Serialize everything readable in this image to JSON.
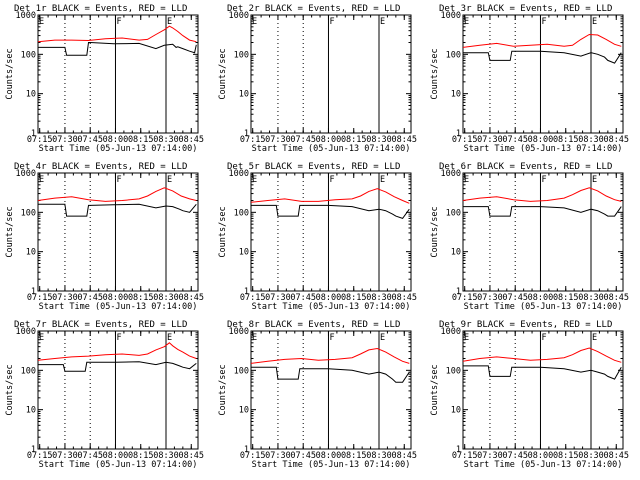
{
  "figure": {
    "date": "05-Jun-13"
  },
  "chart_data": [
    {
      "type": "line",
      "det": "1r",
      "title": "Det 1r BLACK = Events, RED = LLD",
      "xlabel": "Start Time (05-Jun-13 07:14:00)",
      "ylabel": "Counts/sec",
      "ylim": [
        1,
        1000
      ],
      "yscale": "log",
      "x_tick_labels": [
        "07:15",
        "07:30",
        "07:45",
        "08:00",
        "08:15",
        "08:30",
        "08:45"
      ],
      "y_tick_labels": [
        "1",
        "10",
        "100",
        "1000"
      ],
      "markers": [
        {
          "label": "E",
          "time": "07:14"
        },
        {
          "label": "F",
          "time": "08:00"
        },
        {
          "label": "E",
          "time": "08:30"
        }
      ],
      "dotted_lines": [
        "07:30",
        "07:45",
        "08:30"
      ],
      "series": [
        {
          "name": "Events",
          "color": "#000000",
          "times_min": [
            0,
            16,
            17,
            29,
            30,
            31,
            45,
            46,
            60,
            70,
            75,
            80,
            82,
            83,
            86,
            90,
            93,
            94
          ],
          "values": [
            150,
            150,
            95,
            95,
            200,
            200,
            185,
            185,
            190,
            140,
            170,
            180,
            150,
            155,
            140,
            120,
            110,
            175
          ]
        },
        {
          "name": "LLD",
          "color": "#ff0000",
          "times_min": [
            0,
            10,
            20,
            30,
            40,
            50,
            60,
            65,
            70,
            75,
            78,
            80,
            83,
            86,
            90,
            94
          ],
          "values": [
            210,
            230,
            230,
            225,
            250,
            260,
            230,
            240,
            320,
            420,
            520,
            470,
            380,
            300,
            230,
            210
          ]
        }
      ]
    },
    {
      "type": "line",
      "det": "2r",
      "title": "Det 2r BLACK = Events, RED = LLD",
      "xlabel": "Start Time (05-Jun-13 07:14:00)",
      "ylabel": "Counts/sec",
      "ylim": [
        1,
        1000
      ],
      "yscale": "log",
      "x_tick_labels": [
        "07:15",
        "07:30",
        "07:45",
        "08:00",
        "08:15",
        "08:30",
        "08:45"
      ],
      "y_tick_labels": [
        "1",
        "10",
        "100",
        "1000"
      ],
      "markers": [
        {
          "label": "E",
          "time": "07:14"
        },
        {
          "label": "F",
          "time": "08:00"
        },
        {
          "label": "E",
          "time": "08:30"
        }
      ],
      "dotted_lines": [
        "07:30",
        "07:45",
        "08:30"
      ],
      "series": []
    },
    {
      "type": "line",
      "det": "3r",
      "title": "Det 3r BLACK = Events, RED = LLD",
      "xlabel": "Start Time (05-Jun-13 07:14:00)",
      "ylabel": "Counts/sec",
      "ylim": [
        1,
        1000
      ],
      "yscale": "log",
      "x_tick_labels": [
        "07:15",
        "07:30",
        "07:45",
        "08:00",
        "08:15",
        "08:30",
        "08:45"
      ],
      "y_tick_labels": [
        "1",
        "10",
        "100",
        "1000"
      ],
      "markers": [
        {
          "label": "E",
          "time": "07:14"
        },
        {
          "label": "F",
          "time": "08:00"
        },
        {
          "label": "E",
          "time": "08:30"
        }
      ],
      "dotted_lines": [
        "07:30",
        "07:45",
        "08:30"
      ],
      "series": [
        {
          "name": "Events",
          "color": "#000000",
          "times_min": [
            0,
            15,
            16,
            28,
            29,
            30,
            45,
            46,
            60,
            70,
            76,
            80,
            84,
            86,
            90,
            94
          ],
          "values": [
            110,
            110,
            70,
            70,
            120,
            120,
            120,
            120,
            110,
            90,
            110,
            100,
            85,
            70,
            60,
            110
          ]
        },
        {
          "name": "LLD",
          "color": "#ff0000",
          "times_min": [
            0,
            10,
            20,
            30,
            40,
            50,
            60,
            65,
            70,
            75,
            80,
            85,
            90,
            94
          ],
          "values": [
            150,
            170,
            190,
            160,
            170,
            180,
            160,
            170,
            240,
            320,
            310,
            240,
            180,
            160
          ]
        }
      ]
    },
    {
      "type": "line",
      "det": "4r",
      "title": "Det 4r BLACK = Events, RED = LLD",
      "xlabel": "Start Time (05-Jun-13 07:14:00)",
      "ylabel": "Counts/sec",
      "ylim": [
        1,
        1000
      ],
      "yscale": "log",
      "x_tick_labels": [
        "07:15",
        "07:30",
        "07:45",
        "08:00",
        "08:15",
        "08:30",
        "08:45"
      ],
      "y_tick_labels": [
        "1",
        "10",
        "100",
        "1000"
      ],
      "markers": [
        {
          "label": "E",
          "time": "07:14"
        },
        {
          "label": "F",
          "time": "08:00"
        },
        {
          "label": "E",
          "time": "08:30"
        }
      ],
      "dotted_lines": [
        "07:30",
        "07:45",
        "08:30"
      ],
      "series": [
        {
          "name": "Events",
          "color": "#000000",
          "times_min": [
            0,
            16,
            17,
            29,
            30,
            31,
            45,
            46,
            60,
            70,
            76,
            80,
            84,
            86,
            90,
            94
          ],
          "values": [
            160,
            160,
            80,
            80,
            150,
            150,
            155,
            155,
            160,
            130,
            145,
            140,
            120,
            110,
            100,
            160
          ]
        },
        {
          "name": "LLD",
          "color": "#ff0000",
          "times_min": [
            0,
            10,
            20,
            30,
            40,
            50,
            60,
            65,
            70,
            75,
            80,
            85,
            90,
            94
          ],
          "values": [
            200,
            230,
            250,
            210,
            190,
            200,
            220,
            260,
            340,
            420,
            350,
            260,
            220,
            200
          ]
        }
      ]
    },
    {
      "type": "line",
      "det": "5r",
      "title": "Det 5r BLACK = Events, RED = LLD",
      "xlabel": "Start Time (05-Jun-13 07:14:00)",
      "ylabel": "Counts/sec",
      "ylim": [
        1,
        1000
      ],
      "yscale": "log",
      "x_tick_labels": [
        "07:15",
        "07:30",
        "07:45",
        "08:00",
        "08:15",
        "08:30",
        "08:45"
      ],
      "y_tick_labels": [
        "1",
        "10",
        "100",
        "1000"
      ],
      "markers": [
        {
          "label": "E",
          "time": "07:14"
        },
        {
          "label": "F",
          "time": "08:00"
        },
        {
          "label": "E",
          "time": "08:30"
        }
      ],
      "dotted_lines": [
        "07:30",
        "07:45",
        "08:30"
      ],
      "series": [
        {
          "name": "Events",
          "color": "#000000",
          "times_min": [
            0,
            15,
            16,
            28,
            29,
            30,
            45,
            46,
            60,
            70,
            76,
            80,
            84,
            86,
            90,
            94
          ],
          "values": [
            150,
            150,
            80,
            80,
            150,
            150,
            150,
            150,
            140,
            110,
            120,
            110,
            90,
            80,
            70,
            120
          ]
        },
        {
          "name": "LLD",
          "color": "#ff0000",
          "times_min": [
            0,
            10,
            20,
            30,
            40,
            50,
            60,
            65,
            70,
            75,
            80,
            85,
            90,
            94
          ],
          "values": [
            180,
            200,
            220,
            190,
            190,
            210,
            220,
            260,
            340,
            400,
            330,
            250,
            200,
            170
          ]
        }
      ]
    },
    {
      "type": "line",
      "det": "6r",
      "title": "Det 6r BLACK = Events, RED = LLD",
      "xlabel": "Start Time (05-Jun-13 07:14:00)",
      "ylabel": "Counts/sec",
      "ylim": [
        1,
        1000
      ],
      "yscale": "log",
      "x_tick_labels": [
        "07:15",
        "07:30",
        "07:45",
        "08:00",
        "08:15",
        "08:30",
        "08:45"
      ],
      "y_tick_labels": [
        "1",
        "10",
        "100",
        "1000"
      ],
      "markers": [
        {
          "label": "E",
          "time": "07:14"
        },
        {
          "label": "F",
          "time": "08:00"
        },
        {
          "label": "E",
          "time": "08:30"
        }
      ],
      "dotted_lines": [
        "07:30",
        "07:45",
        "08:30"
      ],
      "series": [
        {
          "name": "Events",
          "color": "#000000",
          "times_min": [
            0,
            15,
            16,
            28,
            29,
            30,
            45,
            46,
            60,
            70,
            76,
            80,
            84,
            86,
            90,
            94
          ],
          "values": [
            140,
            140,
            80,
            80,
            140,
            140,
            140,
            140,
            130,
            100,
            120,
            110,
            90,
            80,
            80,
            140
          ]
        },
        {
          "name": "LLD",
          "color": "#ff0000",
          "times_min": [
            0,
            10,
            20,
            30,
            40,
            50,
            60,
            65,
            70,
            75,
            80,
            85,
            90,
            94
          ],
          "values": [
            200,
            230,
            250,
            210,
            190,
            200,
            230,
            280,
            360,
            420,
            350,
            260,
            210,
            190
          ]
        }
      ]
    },
    {
      "type": "line",
      "det": "7r",
      "title": "Det 7r BLACK = Events, RED = LLD",
      "xlabel": "Start Time (05-Jun-13 07:14:00)",
      "ylabel": "Counts/sec",
      "ylim": [
        1,
        1000
      ],
      "yscale": "log",
      "x_tick_labels": [
        "07:15",
        "07:30",
        "07:45",
        "08:00",
        "08:15",
        "08:30",
        "08:45"
      ],
      "y_tick_labels": [
        "1",
        "10",
        "100",
        "1000"
      ],
      "markers": [
        {
          "label": "E",
          "time": "07:14"
        },
        {
          "label": "F",
          "time": "08:00"
        },
        {
          "label": "E",
          "time": "08:30"
        }
      ],
      "dotted_lines": [
        "07:30",
        "07:45",
        "08:30"
      ],
      "series": [
        {
          "name": "Events",
          "color": "#000000",
          "times_min": [
            0,
            15,
            16,
            28,
            29,
            30,
            45,
            46,
            60,
            70,
            76,
            80,
            84,
            86,
            90,
            94
          ],
          "values": [
            140,
            140,
            95,
            95,
            160,
            160,
            160,
            160,
            165,
            140,
            160,
            150,
            130,
            120,
            110,
            150
          ]
        },
        {
          "name": "LLD",
          "color": "#ff0000",
          "times_min": [
            0,
            10,
            20,
            30,
            40,
            50,
            60,
            65,
            70,
            75,
            78,
            80,
            83,
            86,
            90,
            94
          ],
          "values": [
            180,
            200,
            220,
            230,
            250,
            260,
            240,
            260,
            330,
            400,
            500,
            420,
            340,
            290,
            230,
            200
          ]
        }
      ]
    },
    {
      "type": "line",
      "det": "8r",
      "title": "Det 8r BLACK = Events, RED = LLD",
      "xlabel": "Start Time (05-Jun-13 07:14:00)",
      "ylabel": "Counts/sec",
      "ylim": [
        1,
        1000
      ],
      "yscale": "log",
      "x_tick_labels": [
        "07:15",
        "07:30",
        "07:45",
        "08:00",
        "08:15",
        "08:30",
        "08:45"
      ],
      "y_tick_labels": [
        "1",
        "10",
        "100",
        "1000"
      ],
      "markers": [
        {
          "label": "E",
          "time": "07:14"
        },
        {
          "label": "F",
          "time": "08:00"
        },
        {
          "label": "E",
          "time": "08:30"
        }
      ],
      "dotted_lines": [
        "07:30",
        "07:45",
        "08:30"
      ],
      "series": [
        {
          "name": "Events",
          "color": "#000000",
          "times_min": [
            0,
            15,
            16,
            28,
            29,
            30,
            45,
            46,
            60,
            70,
            76,
            80,
            84,
            86,
            90,
            94
          ],
          "values": [
            120,
            120,
            60,
            60,
            110,
            110,
            110,
            110,
            100,
            80,
            90,
            80,
            60,
            50,
            50,
            90
          ]
        },
        {
          "name": "LLD",
          "color": "#ff0000",
          "times_min": [
            0,
            10,
            20,
            30,
            40,
            50,
            60,
            65,
            70,
            75,
            80,
            85,
            90,
            94
          ],
          "values": [
            150,
            170,
            190,
            200,
            180,
            190,
            210,
            260,
            330,
            360,
            290,
            220,
            170,
            150
          ]
        }
      ]
    },
    {
      "type": "line",
      "det": "9r",
      "title": "Det 9r BLACK = Events, RED = LLD",
      "xlabel": "Start Time (05-Jun-13 07:14:00)",
      "ylabel": "Counts/sec",
      "ylim": [
        1,
        1000
      ],
      "yscale": "log",
      "x_tick_labels": [
        "07:15",
        "07:30",
        "07:45",
        "08:00",
        "08:15",
        "08:30",
        "08:45"
      ],
      "y_tick_labels": [
        "1",
        "10",
        "100",
        "1000"
      ],
      "markers": [
        {
          "label": "E",
          "time": "07:14"
        },
        {
          "label": "F",
          "time": "08:00"
        },
        {
          "label": "E",
          "time": "08:30"
        }
      ],
      "dotted_lines": [
        "07:30",
        "07:45",
        "08:30"
      ],
      "series": [
        {
          "name": "Events",
          "color": "#000000",
          "times_min": [
            0,
            15,
            16,
            28,
            29,
            30,
            45,
            46,
            60,
            70,
            76,
            80,
            84,
            86,
            90,
            94
          ],
          "values": [
            130,
            130,
            70,
            70,
            120,
            120,
            120,
            120,
            110,
            90,
            100,
            90,
            80,
            70,
            60,
            120
          ]
        },
        {
          "name": "LLD",
          "color": "#ff0000",
          "times_min": [
            0,
            10,
            20,
            30,
            40,
            50,
            60,
            65,
            70,
            75,
            80,
            85,
            90,
            94
          ],
          "values": [
            170,
            200,
            220,
            200,
            180,
            190,
            210,
            250,
            320,
            370,
            300,
            230,
            180,
            160
          ]
        }
      ]
    }
  ]
}
